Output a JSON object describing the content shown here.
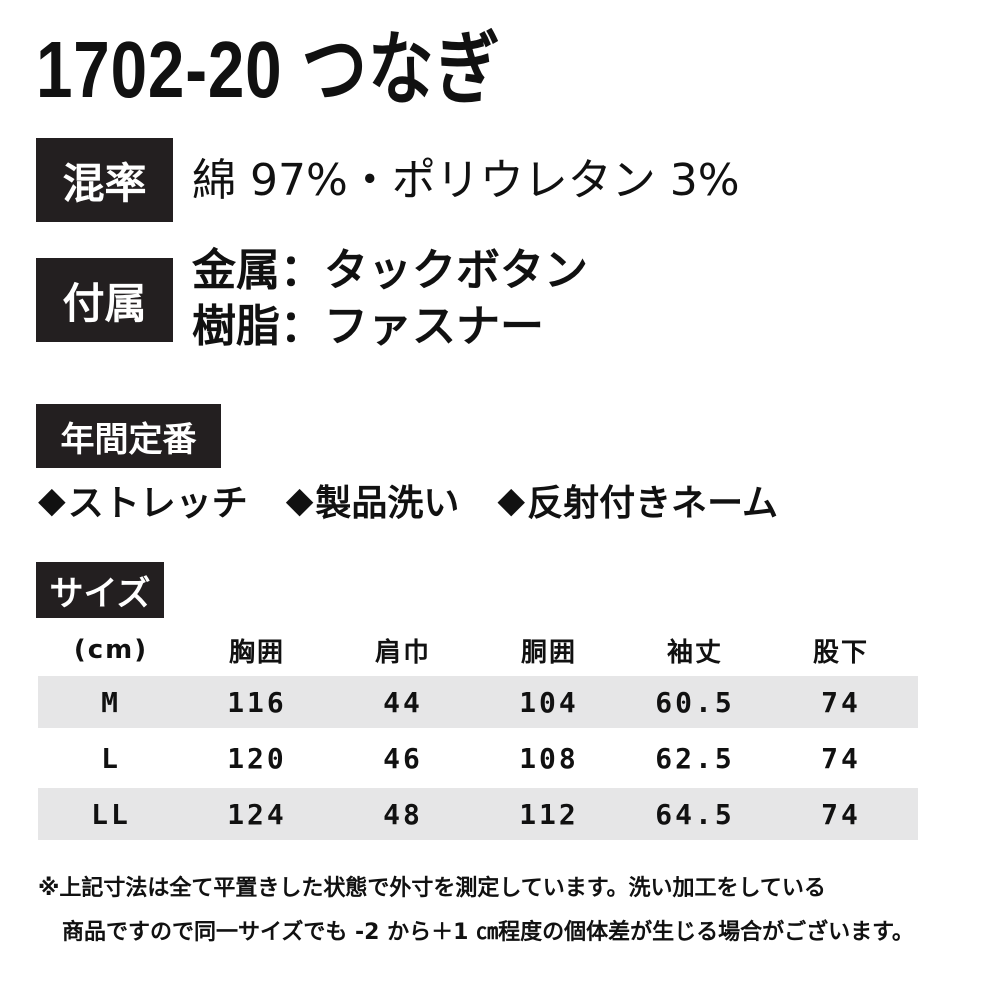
{
  "product": {
    "title": "1702-20 つなぎ"
  },
  "specs": {
    "composition_tag": "混率",
    "composition": "綿 97%・ポリウレタン 3%",
    "accessories_tag": "付属",
    "accessories": [
      "金属：タックボタン",
      "樹脂：ファスナー"
    ]
  },
  "season": {
    "tag": "年間定番",
    "features": [
      {
        "icon": "diamond-bullet-icon",
        "mark": "◆",
        "label": "ストレッチ"
      },
      {
        "icon": "diamond-bullet-icon",
        "mark": "◆",
        "label": "製品洗い"
      },
      {
        "icon": "diamond-bullet-icon",
        "mark": "◆",
        "label": "反射付きネーム"
      }
    ]
  },
  "size": {
    "tag": "サイズ",
    "columns": [
      "(cm)",
      "胸囲",
      "肩巾",
      "胴囲",
      "袖丈",
      "股下"
    ],
    "rows": [
      {
        "size": "M",
        "values": [
          "116",
          "44",
          "104",
          "60.5",
          "74"
        ]
      },
      {
        "size": "L",
        "values": [
          "120",
          "46",
          "108",
          "62.5",
          "74"
        ]
      },
      {
        "size": "LL",
        "values": [
          "124",
          "48",
          "112",
          "64.5",
          "74"
        ]
      }
    ],
    "row_shade_color": "#e6e6e7"
  },
  "notes": [
    "※上記寸法は全て平置きした状態で外寸を測定しています。洗い加工をしている",
    "商品ですので同一サイズでも -2 から＋1 ㎝程度の個体差が生じる場合がございます。"
  ],
  "colors": {
    "tag_background": "#231f20",
    "text": "#111111"
  }
}
